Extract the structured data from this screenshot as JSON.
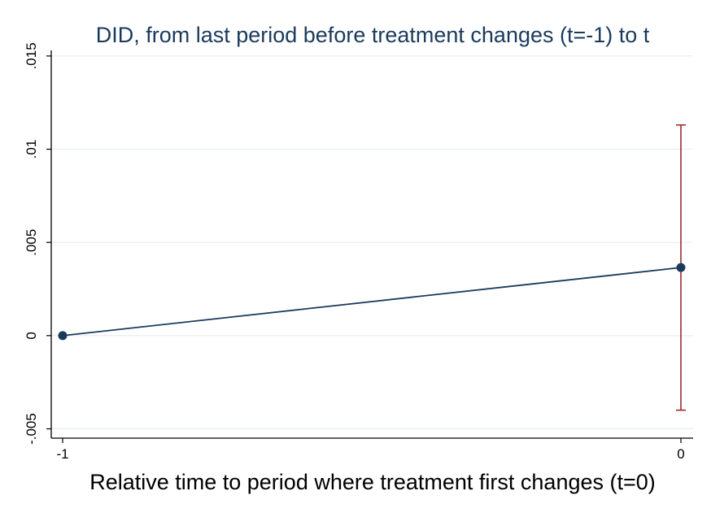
{
  "chart_data": {
    "type": "line",
    "title": "DID, from last period before treatment changes (t=-1) to t",
    "xlabel": "Relative time to period where treatment first changes (t=0)",
    "ylabel": "",
    "x": [
      -1,
      0
    ],
    "x_ticks": [
      "-1",
      "0"
    ],
    "y_ticks": [
      -0.005,
      0,
      0.005,
      0.01,
      0.015
    ],
    "y_tick_labels": [
      "-.005",
      "0",
      ".005",
      ".01",
      ".015"
    ],
    "ylim": [
      -0.0055,
      0.0153
    ],
    "grid": true,
    "series": [
      {
        "values": [
          0,
          0.00365
        ],
        "ci_low": [
          null,
          -0.004
        ],
        "ci_high": [
          null,
          0.0113
        ]
      }
    ],
    "colors": {
      "line": "#1a3a5c",
      "marker": "#1a3a5c",
      "ci": "#9b2a2a",
      "grid": "#e8eef2",
      "axis": "#000000"
    }
  }
}
